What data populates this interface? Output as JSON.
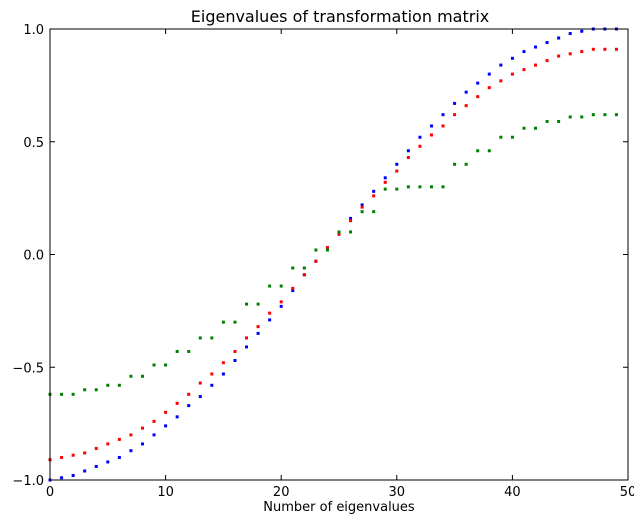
{
  "chart_data": {
    "type": "scatter",
    "title": "Eigenvalues of transformation matrix",
    "xlabel": "Number of eigenvalues",
    "ylabel": "",
    "xlim": [
      0,
      50
    ],
    "ylim": [
      -1.0,
      1.0
    ],
    "xticks": [
      0,
      10,
      20,
      30,
      40,
      50
    ],
    "xtick_labels": [
      "0",
      "10",
      "20",
      "30",
      "40",
      "50"
    ],
    "yticks": [
      -1.0,
      -0.5,
      0.0,
      0.5,
      1.0
    ],
    "ytick_labels": [
      "−1.0",
      "−0.5",
      "0.0",
      "0.5",
      "1.0"
    ],
    "grid": false,
    "legend": false,
    "marker": "point",
    "x": [
      0,
      1,
      2,
      3,
      4,
      5,
      6,
      7,
      8,
      9,
      10,
      11,
      12,
      13,
      14,
      15,
      16,
      17,
      18,
      19,
      20,
      21,
      22,
      23,
      24,
      25,
      26,
      27,
      28,
      29,
      30,
      31,
      32,
      33,
      34,
      35,
      36,
      37,
      38,
      39,
      40,
      41,
      42,
      43,
      44,
      45,
      46,
      47,
      48,
      49
    ],
    "series": [
      {
        "color": "#0000ff",
        "values": [
          -1.0,
          -0.99,
          -0.98,
          -0.96,
          -0.94,
          -0.92,
          -0.9,
          -0.87,
          -0.84,
          -0.8,
          -0.76,
          -0.72,
          -0.67,
          -0.63,
          -0.58,
          -0.53,
          -0.47,
          -0.41,
          -0.35,
          -0.29,
          -0.23,
          -0.16,
          -0.09,
          -0.03,
          0.03,
          0.09,
          0.16,
          0.22,
          0.28,
          0.34,
          0.4,
          0.46,
          0.52,
          0.57,
          0.62,
          0.67,
          0.72,
          0.76,
          0.8,
          0.84,
          0.87,
          0.9,
          0.92,
          0.94,
          0.96,
          0.98,
          0.99,
          1.0,
          1.0,
          1.0
        ]
      },
      {
        "color": "#ff0000",
        "values": [
          -0.91,
          -0.9,
          -0.89,
          -0.88,
          -0.86,
          -0.84,
          -0.82,
          -0.8,
          -0.77,
          -0.74,
          -0.7,
          -0.66,
          -0.62,
          -0.57,
          -0.53,
          -0.48,
          -0.43,
          -0.37,
          -0.32,
          -0.26,
          -0.21,
          -0.15,
          -0.09,
          -0.03,
          0.03,
          0.09,
          0.15,
          0.21,
          0.26,
          0.32,
          0.37,
          0.43,
          0.48,
          0.53,
          0.57,
          0.62,
          0.66,
          0.7,
          0.74,
          0.77,
          0.8,
          0.82,
          0.84,
          0.86,
          0.88,
          0.89,
          0.9,
          0.91,
          0.91,
          0.91
        ]
      },
      {
        "color": "#008000",
        "values": [
          -0.62,
          -0.62,
          -0.62,
          -0.6,
          -0.6,
          -0.58,
          -0.58,
          -0.54,
          -0.54,
          -0.49,
          -0.49,
          -0.43,
          -0.43,
          -0.37,
          -0.37,
          -0.3,
          -0.3,
          -0.22,
          -0.22,
          -0.14,
          -0.14,
          -0.06,
          -0.06,
          0.02,
          0.02,
          0.1,
          0.1,
          0.19,
          0.19,
          0.29,
          0.29,
          0.3,
          0.3,
          0.3,
          0.3,
          0.4,
          0.4,
          0.46,
          0.46,
          0.52,
          0.52,
          0.56,
          0.56,
          0.59,
          0.59,
          0.61,
          0.61,
          0.62,
          0.62,
          0.62
        ]
      }
    ]
  }
}
